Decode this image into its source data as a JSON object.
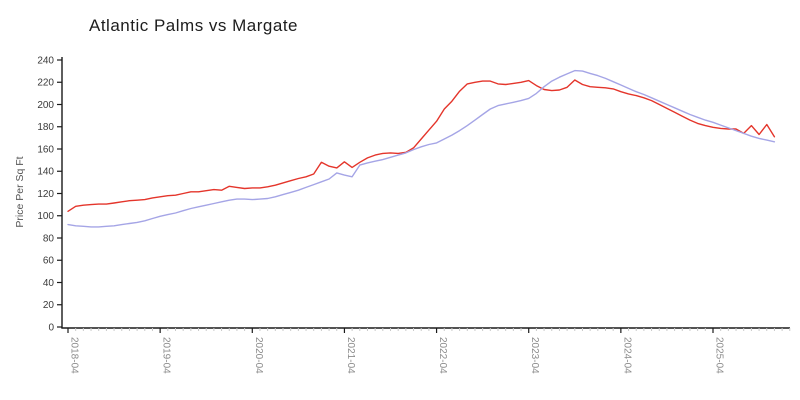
{
  "page": {
    "title": "Atlantic Palms vs Margate"
  },
  "chart_data": {
    "type": "line",
    "title": "Atlantic Palms vs Margate",
    "xlabel": "",
    "ylabel": "Price Per Sq Ft",
    "ylim": [
      0,
      240
    ],
    "ytick_step": 20,
    "grid": false,
    "legend": "none",
    "x_major_tick_labels": [
      "2018-04",
      "2019-04",
      "2020-04",
      "2021-04",
      "2022-04",
      "2023-04",
      "2024-04",
      "2025-04"
    ],
    "axis_color": "#1a1a1a",
    "minor_tick_color": "#c9c9c9",
    "y_tick_label_color": "#3a3a3a",
    "x_tick_label_color": "#8c8c8c",
    "x": [
      "2018-04",
      "2018-05",
      "2018-06",
      "2018-07",
      "2018-08",
      "2018-09",
      "2018-10",
      "2018-11",
      "2018-12",
      "2019-01",
      "2019-02",
      "2019-03",
      "2019-04",
      "2019-05",
      "2019-06",
      "2019-07",
      "2019-08",
      "2019-09",
      "2019-10",
      "2019-11",
      "2019-12",
      "2020-01",
      "2020-02",
      "2020-03",
      "2020-04",
      "2020-05",
      "2020-06",
      "2020-07",
      "2020-08",
      "2020-09",
      "2020-10",
      "2020-11",
      "2020-12",
      "2021-01",
      "2021-02",
      "2021-03",
      "2021-04",
      "2021-05",
      "2021-06",
      "2021-07",
      "2021-08",
      "2021-09",
      "2021-10",
      "2021-11",
      "2021-12",
      "2022-01",
      "2022-02",
      "2022-03",
      "2022-04",
      "2022-05",
      "2022-06",
      "2022-07",
      "2022-08",
      "2022-09",
      "2022-10",
      "2022-11",
      "2022-12",
      "2023-01",
      "2023-02",
      "2023-03",
      "2023-04",
      "2023-05",
      "2023-06",
      "2023-07",
      "2023-08",
      "2023-09",
      "2023-10",
      "2023-11",
      "2023-12",
      "2024-01",
      "2024-02",
      "2024-03",
      "2024-04",
      "2024-05",
      "2024-06",
      "2024-07",
      "2024-08",
      "2024-09",
      "2024-10",
      "2024-11",
      "2024-12",
      "2025-01",
      "2025-02",
      "2025-03",
      "2025-04",
      "2025-05",
      "2025-06",
      "2025-07",
      "2025-08",
      "2025-09",
      "2025-10",
      "2025-11",
      "2025-12"
    ],
    "series": [
      {
        "name": "Atlantic Palms",
        "color": "#e4352b",
        "values": [
          104,
          108.5,
          109.5,
          110,
          110.5,
          110.5,
          111.5,
          112.5,
          113.5,
          114,
          114.5,
          116,
          117,
          118,
          118.5,
          120,
          121.5,
          121.5,
          122.5,
          123.5,
          123,
          126.5,
          125.5,
          124.5,
          125,
          125,
          126,
          127.5,
          129.5,
          131.5,
          133.5,
          135,
          137.5,
          148,
          144.5,
          143,
          148.5,
          143.5,
          148,
          152,
          154.5,
          156,
          156.5,
          156,
          157,
          161,
          169,
          177,
          185,
          196,
          203,
          212,
          218.5,
          220,
          221,
          221,
          218.5,
          218,
          219,
          220,
          221.5,
          217,
          213.5,
          212.5,
          213,
          215.5,
          222,
          218,
          216,
          215.5,
          215,
          214,
          211.5,
          209.5,
          208,
          206,
          203.5,
          200,
          196.5,
          193,
          189.5,
          186,
          183,
          181,
          179.5,
          178.5,
          178,
          178,
          174,
          181,
          173,
          182,
          171
        ]
      },
      {
        "name": "Margate",
        "color": "#a5a5e6",
        "values": [
          92,
          91,
          90.5,
          90,
          90,
          90.5,
          91,
          92,
          93,
          94,
          95.5,
          97.5,
          99.5,
          101,
          102.5,
          104.5,
          106.5,
          108,
          109.5,
          111,
          112.5,
          114,
          115,
          115,
          114.5,
          115,
          115.5,
          117,
          119,
          121,
          123,
          125.5,
          128,
          130.5,
          133,
          138.5,
          136.5,
          135,
          145.5,
          147.5,
          149,
          150.5,
          152.5,
          154.5,
          156.5,
          159.5,
          162,
          164,
          165.5,
          169,
          172.5,
          176.5,
          181,
          186,
          191,
          196,
          199,
          200.5,
          202,
          203.5,
          205.5,
          210,
          216,
          221,
          224.5,
          227.5,
          230.5,
          230,
          228,
          226,
          223.5,
          220.5,
          217.5,
          214.5,
          211.5,
          209,
          206,
          203,
          200,
          197,
          194,
          191,
          188.5,
          186,
          184,
          181.5,
          179,
          176.5,
          174,
          171.5,
          169.5,
          168,
          166.5
        ]
      }
    ]
  }
}
